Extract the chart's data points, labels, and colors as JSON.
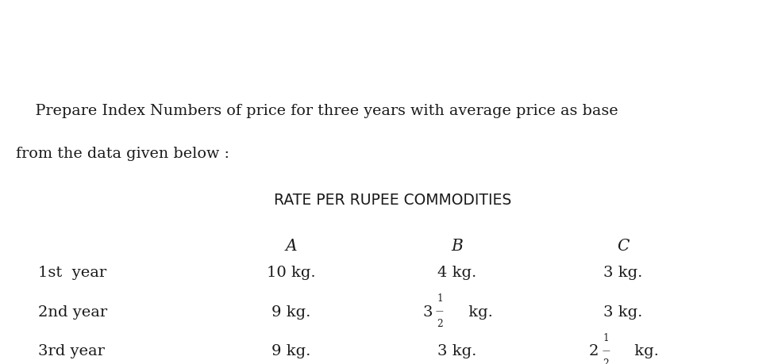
{
  "title_line1": "    Prepare Index Numbers of price for three years with average price as base",
  "title_line2": "from the data given below :",
  "subtitle": "RATE PER RUPEE COMMODITIES",
  "col_headers": [
    "A",
    "B",
    "C"
  ],
  "row_labels": [
    "1st  year",
    "2nd year",
    "3rd year"
  ],
  "col_A": [
    "10 kg.",
    "9 kg.",
    "9 kg."
  ],
  "col_B_plain": [
    "4 kg.",
    "",
    "3 kg."
  ],
  "col_B_frac_whole": [
    "",
    "3",
    ""
  ],
  "col_B_has_frac": [
    false,
    true,
    false
  ],
  "col_C_plain": [
    "3 kg.",
    "3 kg.",
    ""
  ],
  "col_C_frac_whole": [
    "",
    "",
    "2"
  ],
  "col_C_has_frac": [
    false,
    false,
    true
  ],
  "bg_color": "#ffffff",
  "text_color": "#1a1a1a",
  "title_fontsize": 13.8,
  "data_fontsize": 14.0,
  "subtitle_fontsize": 13.5,
  "header_fontsize": 14.5
}
